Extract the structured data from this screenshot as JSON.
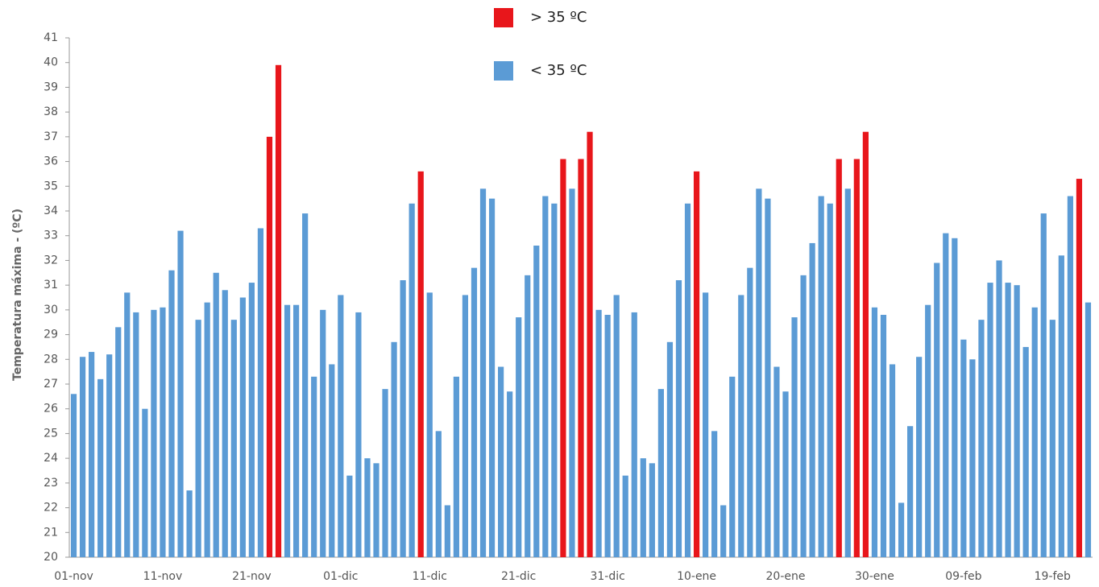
{
  "chart_data": {
    "type": "bar",
    "y_label": "Temperatura máxima - (ºC)",
    "categories": [
      "01-nov",
      null,
      null,
      null,
      null,
      null,
      null,
      null,
      null,
      null,
      "11-nov",
      null,
      null,
      null,
      null,
      null,
      null,
      null,
      null,
      null,
      "21-nov",
      null,
      null,
      null,
      null,
      null,
      null,
      null,
      null,
      null,
      "01-dic",
      null,
      null,
      null,
      null,
      null,
      null,
      null,
      null,
      null,
      "11-dic",
      null,
      null,
      null,
      null,
      null,
      null,
      null,
      null,
      null,
      "21-dic",
      null,
      null,
      null,
      null,
      null,
      null,
      null,
      null,
      null,
      "31-dic",
      null,
      null,
      null,
      null,
      null,
      null,
      null,
      null,
      null,
      "10-ene",
      null,
      null,
      null,
      null,
      null,
      null,
      null,
      null,
      null,
      "20-ene",
      null,
      null,
      null,
      null,
      null,
      null,
      null,
      null,
      null,
      "30-ene",
      null,
      null,
      null,
      null,
      null,
      null,
      null,
      null,
      null,
      "09-feb",
      null,
      null,
      null,
      null,
      null,
      null,
      null,
      null,
      null,
      "19-feb",
      null,
      null,
      null,
      null
    ],
    "series": [
      {
        "name": "> 35 ºC",
        "color": "#e8161b",
        "values": [
          null,
          null,
          null,
          null,
          null,
          null,
          null,
          null,
          null,
          null,
          null,
          null,
          null,
          null,
          null,
          null,
          null,
          null,
          null,
          null,
          null,
          null,
          37.0,
          39.9,
          null,
          null,
          null,
          null,
          null,
          null,
          null,
          null,
          null,
          null,
          null,
          null,
          null,
          null,
          null,
          35.6,
          null,
          null,
          null,
          null,
          null,
          null,
          null,
          null,
          null,
          null,
          null,
          null,
          null,
          null,
          null,
          36.1,
          null,
          36.1,
          37.2,
          null,
          null,
          null,
          null,
          null,
          null,
          null,
          null,
          null,
          null,
          null,
          35.6,
          null,
          null,
          null,
          null,
          null,
          null,
          null,
          null,
          null,
          null,
          null,
          null,
          null,
          null,
          null,
          36.1,
          null,
          36.1,
          37.2,
          null,
          null,
          null,
          null,
          null,
          null,
          null,
          null,
          null,
          null,
          null,
          null,
          null,
          null,
          null,
          null,
          null,
          null,
          null,
          null,
          null,
          null,
          null,
          35.3,
          null
        ]
      },
      {
        "name": "< 35 ºC",
        "color": "#5b9bd5",
        "values": [
          26.6,
          28.1,
          28.3,
          27.2,
          28.2,
          29.3,
          30.7,
          29.9,
          26.0,
          30.0,
          30.1,
          31.6,
          33.2,
          22.7,
          29.6,
          30.3,
          31.5,
          30.8,
          29.6,
          30.5,
          31.1,
          33.3,
          null,
          null,
          30.2,
          30.2,
          33.9,
          27.3,
          30.0,
          27.8,
          30.6,
          23.3,
          29.9,
          24.0,
          23.8,
          26.8,
          28.7,
          31.2,
          34.3,
          null,
          30.7,
          25.1,
          22.1,
          27.3,
          30.6,
          31.7,
          34.9,
          34.5,
          27.7,
          26.7,
          29.7,
          31.4,
          32.6,
          34.6,
          34.3,
          null,
          34.9,
          null,
          null,
          30.0,
          29.8,
          30.6,
          23.3,
          29.9,
          24.0,
          23.8,
          26.8,
          28.7,
          31.2,
          34.3,
          null,
          30.7,
          25.1,
          22.1,
          27.3,
          30.6,
          31.7,
          34.9,
          34.5,
          27.7,
          26.7,
          29.7,
          31.4,
          32.7,
          34.6,
          34.3,
          null,
          34.9,
          null,
          null,
          30.1,
          29.8,
          27.8,
          22.2,
          25.3,
          28.1,
          30.2,
          31.9,
          33.1,
          32.9,
          28.8,
          28.0,
          29.6,
          31.1,
          32.0,
          31.1,
          31.0,
          28.5,
          30.1,
          33.9,
          29.6,
          32.2,
          34.6,
          null,
          30.3
        ]
      }
    ],
    "ylim": [
      20,
      41
    ],
    "yticks": [
      20,
      21,
      22,
      23,
      24,
      25,
      26,
      27,
      28,
      29,
      30,
      31,
      32,
      33,
      34,
      35,
      36,
      37,
      38,
      39,
      40,
      41
    ]
  }
}
